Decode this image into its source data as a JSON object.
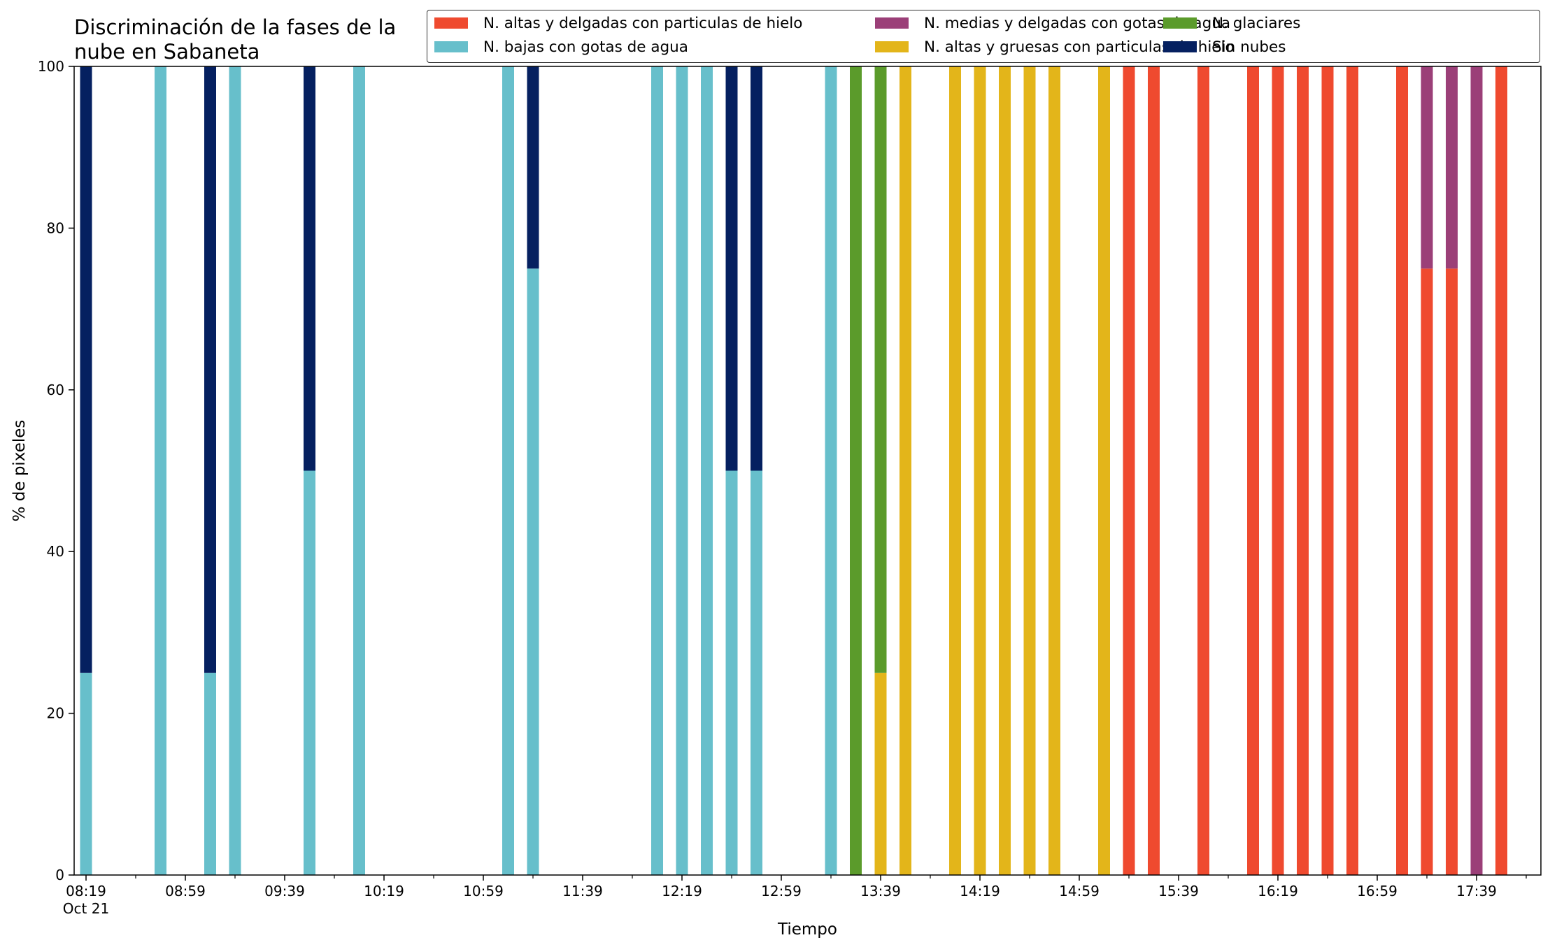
{
  "chart_data": {
    "type": "bar",
    "stacked": true,
    "title": "Discriminación de la fases de la\nnube en Sabaneta",
    "xlabel": "Tiempo",
    "ylabel": "% de pixeles",
    "ylim": [
      0,
      100
    ],
    "y_ticks": [
      0,
      20,
      40,
      60,
      80,
      100
    ],
    "x_start": "08:19",
    "x_end": "17:59",
    "x_ticks": [
      "08:19",
      "08:59",
      "09:39",
      "10:19",
      "10:59",
      "11:39",
      "12:19",
      "12:59",
      "13:39",
      "14:19",
      "14:59",
      "15:39",
      "16:19",
      "16:59",
      "17:39"
    ],
    "x_minor_ticks": [
      "08:39",
      "09:19",
      "09:59",
      "10:39",
      "11:19",
      "11:59",
      "12:39",
      "13:19",
      "13:59",
      "14:39",
      "15:19",
      "15:59",
      "16:39",
      "17:19",
      "17:59"
    ],
    "x_date_label": "Oct 21",
    "legend_position": "top-right",
    "grid": false,
    "series": [
      {
        "name": "N. altas y delgadas con particulas de hielo",
        "color": "#ef4a2f"
      },
      {
        "name": "N. altas y gruesas con particulas de hielo",
        "color": "#e3b51a"
      },
      {
        "name": "N. bajas con gotas de agua",
        "color": "#67bfcb"
      },
      {
        "name": "N. glaciares",
        "color": "#5b9b2b"
      },
      {
        "name": "N. medias y delgadas con gotas de agua",
        "color": "#9b3f78"
      },
      {
        "name": "Sin nubes",
        "color": "#052060"
      }
    ],
    "legend_order": [
      0,
      2,
      4,
      1,
      3,
      5
    ],
    "bars": [
      {
        "time": "08:19",
        "segments": [
          {
            "series": 2,
            "value": 25
          },
          {
            "series": 5,
            "value": 75
          }
        ]
      },
      {
        "time": "08:49",
        "segments": [
          {
            "series": 2,
            "value": 100
          }
        ]
      },
      {
        "time": "09:09",
        "segments": [
          {
            "series": 2,
            "value": 25
          },
          {
            "series": 5,
            "value": 75
          }
        ]
      },
      {
        "time": "09:19",
        "segments": [
          {
            "series": 2,
            "value": 100
          }
        ]
      },
      {
        "time": "09:49",
        "segments": [
          {
            "series": 2,
            "value": 50
          },
          {
            "series": 5,
            "value": 50
          }
        ]
      },
      {
        "time": "10:09",
        "segments": [
          {
            "series": 2,
            "value": 100
          }
        ]
      },
      {
        "time": "11:09",
        "segments": [
          {
            "series": 2,
            "value": 100
          }
        ]
      },
      {
        "time": "11:19",
        "segments": [
          {
            "series": 2,
            "value": 75
          },
          {
            "series": 5,
            "value": 25
          }
        ]
      },
      {
        "time": "12:09",
        "segments": [
          {
            "series": 2,
            "value": 100
          }
        ]
      },
      {
        "time": "12:19",
        "segments": [
          {
            "series": 2,
            "value": 100
          }
        ]
      },
      {
        "time": "12:29",
        "segments": [
          {
            "series": 2,
            "value": 100
          }
        ]
      },
      {
        "time": "12:39",
        "segments": [
          {
            "series": 2,
            "value": 50
          },
          {
            "series": 5,
            "value": 50
          }
        ]
      },
      {
        "time": "12:49",
        "segments": [
          {
            "series": 2,
            "value": 50
          },
          {
            "series": 5,
            "value": 50
          }
        ]
      },
      {
        "time": "13:19",
        "segments": [
          {
            "series": 2,
            "value": 100
          }
        ]
      },
      {
        "time": "13:29",
        "segments": [
          {
            "series": 3,
            "value": 100
          }
        ]
      },
      {
        "time": "13:39",
        "segments": [
          {
            "series": 1,
            "value": 25
          },
          {
            "series": 3,
            "value": 75
          }
        ]
      },
      {
        "time": "13:49",
        "segments": [
          {
            "series": 1,
            "value": 100
          }
        ]
      },
      {
        "time": "14:09",
        "segments": [
          {
            "series": 1,
            "value": 100
          }
        ]
      },
      {
        "time": "14:19",
        "segments": [
          {
            "series": 1,
            "value": 100
          }
        ]
      },
      {
        "time": "14:29",
        "segments": [
          {
            "series": 1,
            "value": 100
          }
        ]
      },
      {
        "time": "14:39",
        "segments": [
          {
            "series": 1,
            "value": 100
          }
        ]
      },
      {
        "time": "14:49",
        "segments": [
          {
            "series": 1,
            "value": 100
          }
        ]
      },
      {
        "time": "15:09",
        "segments": [
          {
            "series": 1,
            "value": 100
          }
        ]
      },
      {
        "time": "15:19",
        "segments": [
          {
            "series": 0,
            "value": 100
          }
        ]
      },
      {
        "time": "15:29",
        "segments": [
          {
            "series": 0,
            "value": 100
          }
        ]
      },
      {
        "time": "15:49",
        "segments": [
          {
            "series": 0,
            "value": 100
          }
        ]
      },
      {
        "time": "16:09",
        "segments": [
          {
            "series": 0,
            "value": 100
          }
        ]
      },
      {
        "time": "16:19",
        "segments": [
          {
            "series": 0,
            "value": 100
          }
        ]
      },
      {
        "time": "16:29",
        "segments": [
          {
            "series": 0,
            "value": 100
          }
        ]
      },
      {
        "time": "16:39",
        "segments": [
          {
            "series": 0,
            "value": 100
          }
        ]
      },
      {
        "time": "16:49",
        "segments": [
          {
            "series": 0,
            "value": 100
          }
        ]
      },
      {
        "time": "17:09",
        "segments": [
          {
            "series": 0,
            "value": 100
          }
        ]
      },
      {
        "time": "17:19",
        "segments": [
          {
            "series": 0,
            "value": 75
          },
          {
            "series": 4,
            "value": 25
          }
        ]
      },
      {
        "time": "17:29",
        "segments": [
          {
            "series": 0,
            "value": 75
          },
          {
            "series": 4,
            "value": 25
          }
        ]
      },
      {
        "time": "17:39",
        "segments": [
          {
            "series": 4,
            "value": 100
          }
        ]
      },
      {
        "time": "17:49",
        "segments": [
          {
            "series": 0,
            "value": 100
          }
        ]
      }
    ]
  }
}
